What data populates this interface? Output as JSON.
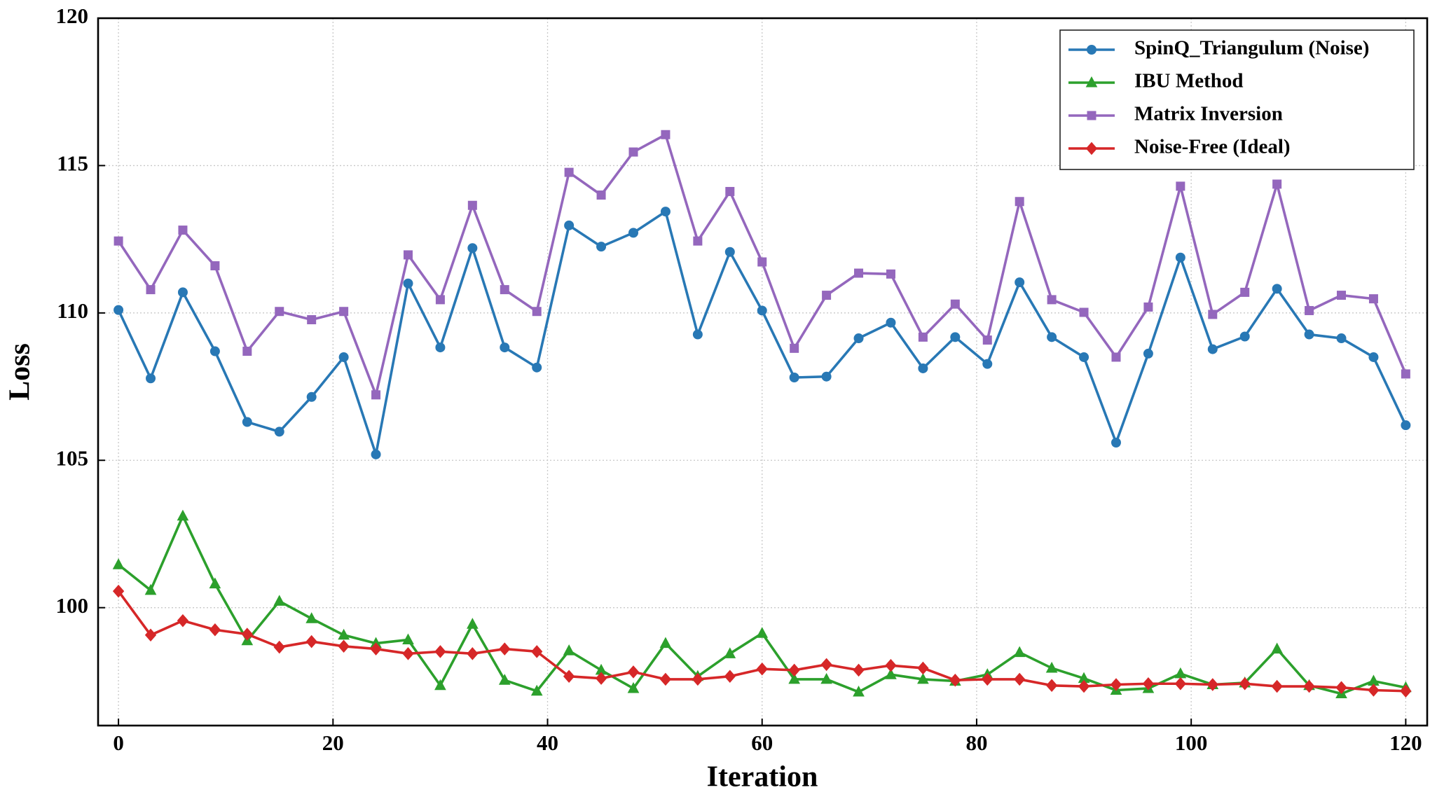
{
  "chart_data": {
    "type": "line",
    "xlabel": "Iteration",
    "ylabel": "Loss",
    "x": [
      0,
      3,
      6,
      9,
      12,
      15,
      18,
      21,
      24,
      27,
      30,
      33,
      36,
      39,
      42,
      45,
      48,
      51,
      54,
      57,
      60,
      63,
      66,
      69,
      72,
      75,
      78,
      81,
      84,
      87,
      90,
      93,
      96,
      99,
      102,
      105,
      108,
      111,
      114,
      117,
      120
    ],
    "series": [
      {
        "name": "SpinQ_Triangulum (Noise)",
        "color": "#2878b5",
        "marker": "circle",
        "values": [
          110.1,
          107.78,
          110.7,
          108.7,
          106.3,
          105.97,
          107.15,
          108.5,
          105.2,
          111.0,
          108.83,
          112.2,
          108.83,
          108.15,
          112.97,
          112.25,
          112.72,
          113.44,
          109.27,
          112.07,
          110.08,
          107.81,
          107.84,
          109.14,
          109.67,
          108.12,
          109.18,
          108.27,
          111.04,
          109.18,
          108.5,
          105.6,
          108.62,
          111.88,
          108.77,
          109.2,
          110.82,
          109.27,
          109.14,
          108.5,
          106.19
        ]
      },
      {
        "name": "IBU Method",
        "color": "#2ca02c",
        "marker": "triangle",
        "values": [
          101.46,
          100.59,
          103.11,
          100.81,
          98.88,
          100.22,
          99.63,
          99.07,
          98.79,
          98.91,
          97.36,
          99.44,
          97.54,
          97.17,
          98.54,
          97.88,
          97.26,
          98.79,
          97.67,
          98.44,
          99.13,
          97.57,
          97.57,
          97.14,
          97.73,
          97.57,
          97.51,
          97.73,
          98.48,
          97.95,
          97.6,
          97.2,
          97.26,
          97.76,
          97.39,
          97.45,
          98.6,
          97.36,
          97.08,
          97.51,
          97.29
        ]
      },
      {
        "name": "Matrix Inversion",
        "color": "#9467bd",
        "marker": "square",
        "values": [
          112.44,
          110.79,
          112.81,
          111.6,
          108.7,
          110.05,
          109.77,
          110.05,
          107.22,
          111.97,
          110.45,
          113.65,
          110.79,
          110.05,
          114.77,
          114.0,
          115.46,
          116.05,
          112.44,
          114.12,
          111.73,
          108.8,
          110.6,
          111.35,
          111.32,
          109.18,
          110.3,
          109.08,
          113.78,
          110.45,
          110.02,
          108.5,
          110.2,
          114.3,
          109.95,
          110.7,
          114.37,
          110.08,
          110.6,
          110.48,
          107.93
        ]
      },
      {
        "name": "Noise-Free (Ideal)",
        "color": "#d62728",
        "marker": "diamond",
        "values": [
          100.56,
          99.07,
          99.56,
          99.25,
          99.1,
          98.66,
          98.85,
          98.69,
          98.6,
          98.44,
          98.51,
          98.44,
          98.6,
          98.51,
          97.67,
          97.6,
          97.82,
          97.57,
          97.57,
          97.67,
          97.92,
          97.88,
          98.07,
          97.88,
          98.04,
          97.95,
          97.54,
          97.57,
          97.57,
          97.36,
          97.33,
          97.39,
          97.42,
          97.42,
          97.39,
          97.42,
          97.33,
          97.33,
          97.29,
          97.2,
          97.17
        ]
      }
    ],
    "xlim": [
      -1.9,
      122
    ],
    "ylim": [
      96,
      120
    ],
    "xticks": [
      0,
      20,
      40,
      60,
      80,
      100,
      120
    ],
    "yticks": [
      100,
      105,
      110,
      115,
      120
    ],
    "grid": true,
    "legend": "upper right"
  }
}
